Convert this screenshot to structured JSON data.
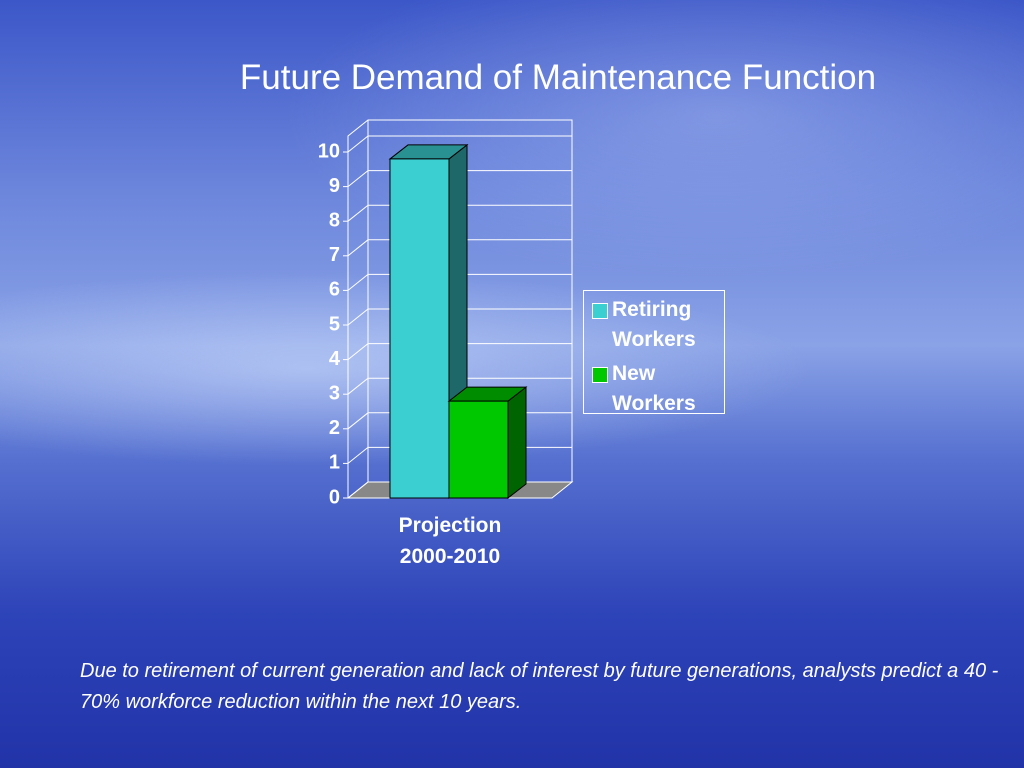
{
  "chart_data": {
    "type": "bar3d",
    "title": "Future Demand of Maintenance Function",
    "categories": [
      "Projection 2000-2010"
    ],
    "series": [
      {
        "name": "Retiring Workers",
        "color": "#3ccfd2",
        "values": [
          9.8
        ]
      },
      {
        "name": "New Workers",
        "color": "#00c800",
        "values": [
          2.8
        ]
      }
    ],
    "ylim": [
      0,
      10
    ],
    "yticks": [
      0,
      1,
      2,
      3,
      4,
      5,
      6,
      7,
      8,
      9,
      10
    ],
    "grid": true,
    "legend": "right",
    "note": "Due to retirement of current generation and lack of interest by future generations, analysts predict a 40 - 70% workforce reduction within the next 10 years."
  }
}
